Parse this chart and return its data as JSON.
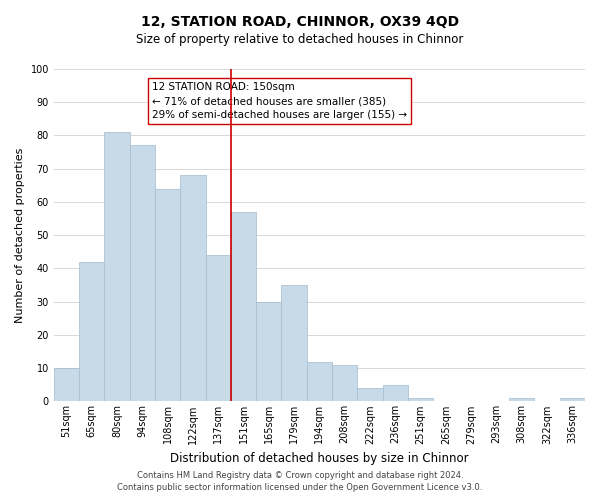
{
  "title": "12, STATION ROAD, CHINNOR, OX39 4QD",
  "subtitle": "Size of property relative to detached houses in Chinnor",
  "xlabel": "Distribution of detached houses by size in Chinnor",
  "ylabel": "Number of detached properties",
  "categories": [
    "51sqm",
    "65sqm",
    "80sqm",
    "94sqm",
    "108sqm",
    "122sqm",
    "137sqm",
    "151sqm",
    "165sqm",
    "179sqm",
    "194sqm",
    "208sqm",
    "222sqm",
    "236sqm",
    "251sqm",
    "265sqm",
    "279sqm",
    "293sqm",
    "308sqm",
    "322sqm",
    "336sqm"
  ],
  "values": [
    10,
    42,
    81,
    77,
    64,
    68,
    44,
    57,
    30,
    35,
    12,
    11,
    4,
    5,
    1,
    0,
    0,
    0,
    1,
    0,
    1
  ],
  "bar_color": "#c8d9e8",
  "bar_edge_color": "#a0bcd0",
  "vline_x_index": 7,
  "vline_color": "#cc0000",
  "annotation_line1": "12 STATION ROAD: 150sqm",
  "annotation_line2": "← 71% of detached houses are smaller (385)",
  "annotation_line3": "29% of semi-detached houses are larger (155) →",
  "ylim": [
    0,
    100
  ],
  "yticks": [
    0,
    10,
    20,
    30,
    40,
    50,
    60,
    70,
    80,
    90,
    100
  ],
  "footer_line1": "Contains HM Land Registry data © Crown copyright and database right 2024.",
  "footer_line2": "Contains public sector information licensed under the Open Government Licence v3.0.",
  "bg_color": "#ffffff",
  "grid_color": "#d8d8d8",
  "title_fontsize": 10,
  "subtitle_fontsize": 8.5,
  "xlabel_fontsize": 8.5,
  "ylabel_fontsize": 8,
  "tick_fontsize": 7,
  "annotation_fontsize": 7.5,
  "footer_fontsize": 6,
  "annotation_box_color": "#ffffff",
  "annotation_box_edge": "#cc0000",
  "bar_width": 1.0
}
